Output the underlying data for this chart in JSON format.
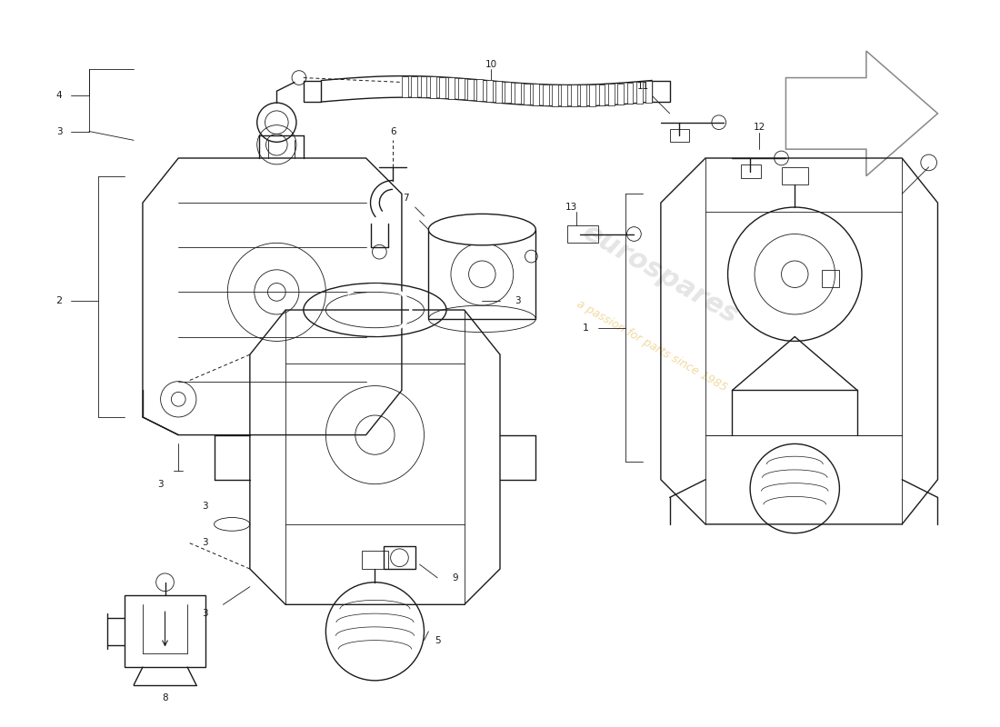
{
  "bg_color": "#ffffff",
  "lc": "#1a1a1a",
  "wm1": "eurospares",
  "wm2": "a passion for parts since 1985",
  "wm1_color": "#cccccc",
  "wm2_color": "#e8c060",
  "fig_w": 11.0,
  "fig_h": 8.0,
  "dpi": 100
}
